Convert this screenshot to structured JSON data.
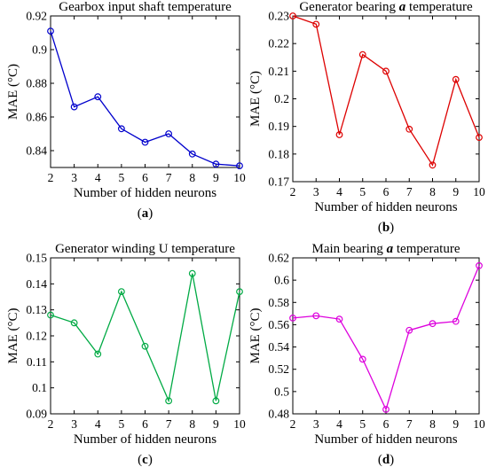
{
  "chart_data": [
    {
      "type": "line",
      "title_pre": "Gearbox input shaft temperature",
      "title_ital": "",
      "title_post": "",
      "xlabel": "Number of hidden neurons",
      "ylabel": "MAE (°C)",
      "panel_letter": "a",
      "color": "#0000cc",
      "x": [
        2,
        3,
        4,
        5,
        6,
        7,
        8,
        9,
        10
      ],
      "y": [
        0.911,
        0.866,
        0.872,
        0.853,
        0.845,
        0.85,
        0.838,
        0.832,
        0.831
      ],
      "xlim": [
        2,
        10
      ],
      "ylim": [
        0.83,
        0.92
      ],
      "yticks": [
        0.84,
        0.86,
        0.88,
        0.9,
        0.92
      ],
      "ytick_labels": [
        "0.84",
        "0.86",
        "0.88",
        "0.9",
        "0.92"
      ],
      "xticks": [
        2,
        3,
        4,
        5,
        6,
        7,
        8,
        9,
        10
      ]
    },
    {
      "type": "line",
      "title_pre": "Generator bearing ",
      "title_ital": "a",
      "title_post": " temperature",
      "xlabel": "Number of hidden neurons",
      "ylabel": "MAE (°C)",
      "panel_letter": "b",
      "color": "#dd0000",
      "x": [
        2,
        3,
        4,
        5,
        6,
        7,
        8,
        9,
        10
      ],
      "y": [
        0.23,
        0.227,
        0.187,
        0.216,
        0.21,
        0.189,
        0.176,
        0.207,
        0.186
      ],
      "xlim": [
        2,
        10
      ],
      "ylim": [
        0.17,
        0.23
      ],
      "yticks": [
        0.17,
        0.18,
        0.19,
        0.2,
        0.21,
        0.22,
        0.23
      ],
      "ytick_labels": [
        "0.17",
        "0.18",
        "0.19",
        "0.2",
        "0.21",
        "0.22",
        "0.23"
      ],
      "xticks": [
        2,
        3,
        4,
        5,
        6,
        7,
        8,
        9,
        10
      ]
    },
    {
      "type": "line",
      "title_pre": "Generator winding U temperature",
      "title_ital": "",
      "title_post": "",
      "xlabel": "Number of hidden neurons",
      "ylabel": "MAE (°C)",
      "panel_letter": "c",
      "color": "#00aa44",
      "x": [
        2,
        3,
        4,
        5,
        6,
        7,
        8,
        9,
        10
      ],
      "y": [
        0.128,
        0.125,
        0.113,
        0.137,
        0.116,
        0.095,
        0.144,
        0.095,
        0.137
      ],
      "xlim": [
        2,
        10
      ],
      "ylim": [
        0.09,
        0.15
      ],
      "yticks": [
        0.09,
        0.1,
        0.11,
        0.12,
        0.13,
        0.14,
        0.15
      ],
      "ytick_labels": [
        "0.09",
        "0.1",
        "0.11",
        "0.12",
        "0.13",
        "0.14",
        "0.15"
      ],
      "xticks": [
        2,
        3,
        4,
        5,
        6,
        7,
        8,
        9,
        10
      ]
    },
    {
      "type": "line",
      "title_pre": "Main bearing ",
      "title_ital": "a",
      "title_post": " temperature",
      "xlabel": "Number of hidden neurons",
      "ylabel": "MAE (°C)",
      "panel_letter": "d",
      "color": "#dd00dd",
      "x": [
        2,
        3,
        4,
        5,
        6,
        7,
        8,
        9,
        10
      ],
      "y": [
        0.566,
        0.568,
        0.565,
        0.529,
        0.484,
        0.555,
        0.561,
        0.563,
        0.613
      ],
      "xlim": [
        2,
        10
      ],
      "ylim": [
        0.48,
        0.62
      ],
      "yticks": [
        0.48,
        0.5,
        0.52,
        0.54,
        0.56,
        0.58,
        0.6,
        0.62
      ],
      "ytick_labels": [
        "0.48",
        "0.5",
        "0.52",
        "0.54",
        "0.56",
        "0.58",
        "0.6",
        "0.62"
      ],
      "xticks": [
        2,
        3,
        4,
        5,
        6,
        7,
        8,
        9,
        10
      ]
    }
  ]
}
